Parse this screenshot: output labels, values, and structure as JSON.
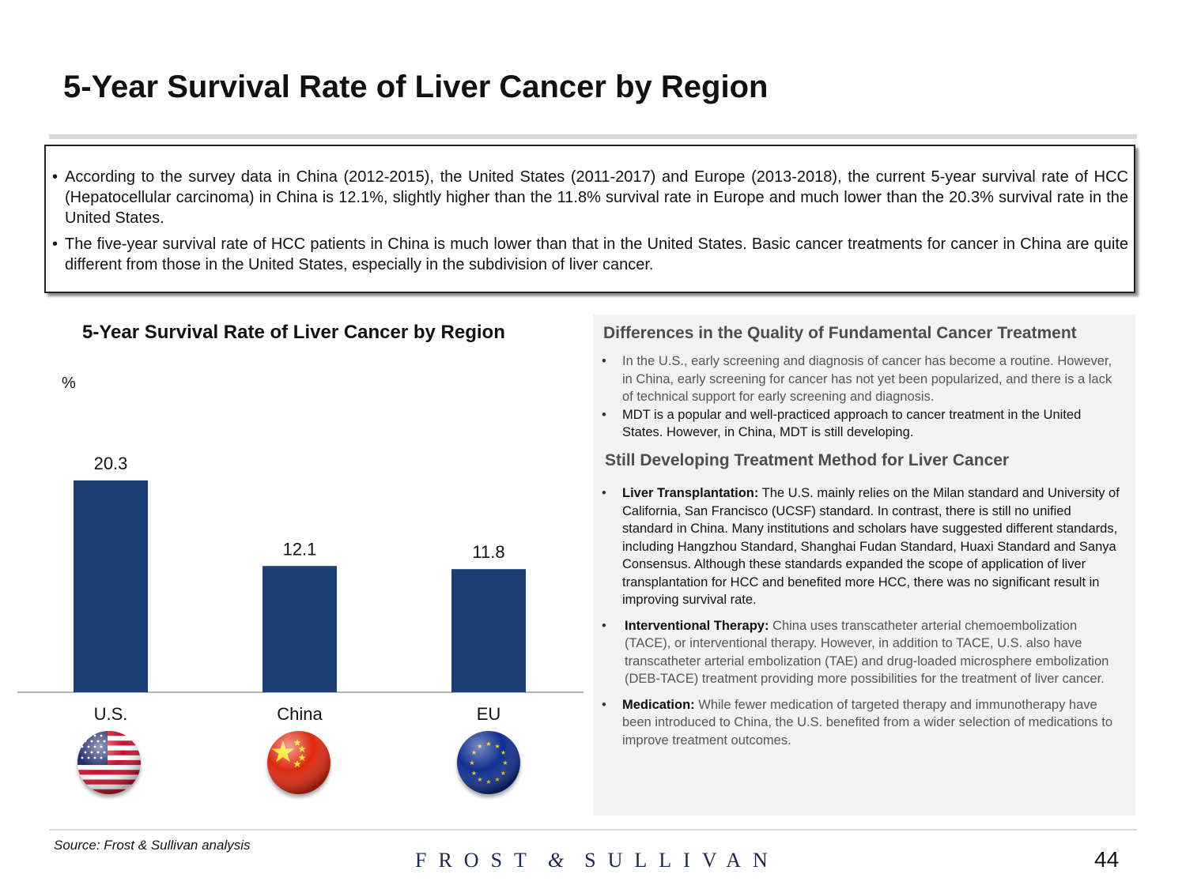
{
  "header": {
    "title": "5-Year Survival Rate of Liver Cancer by Region"
  },
  "summary": {
    "bullets": [
      "According to the survey data in China (2012-2015), the United States (2011-2017) and Europe (2013-2018), the current 5-year survival rate of HCC (Hepatocellular carcinoma) in China is 12.1%, slightly higher than the 11.8% survival rate in Europe and much lower than the 20.3% survival rate in the United States.",
      "The five-year survival rate of HCC patients in China is much lower than that in the United States. Basic cancer treatments for cancer in China are quite different from those in the United States, especially in the subdivision of liver cancer."
    ]
  },
  "chart_data": {
    "type": "bar",
    "title": "5-Year Survival Rate of Liver Cancer by Region",
    "ylabel": "%",
    "xlabel": "",
    "categories": [
      "U.S.",
      "China",
      "EU"
    ],
    "values": [
      20.3,
      12.1,
      11.8
    ],
    "value_labels": [
      "20.3",
      "12.1",
      "11.8"
    ],
    "ylim": [
      0,
      20.3
    ],
    "grid": false,
    "bar_color": "#1b3f73"
  },
  "flags": [
    "us-flag-icon",
    "china-flag-icon",
    "eu-flag-icon"
  ],
  "panel": {
    "section1": {
      "heading": "Differences in the Quality of Fundamental Cancer Treatment",
      "items": [
        "In the U.S., early screening and diagnosis of cancer has become a routine. However, in China, early screening for cancer has not yet been popularized, and there is a lack of technical support for early screening and diagnosis.",
        "MDT is a popular and well-practiced approach to cancer treatment in the United States. However, in China, MDT is still developing."
      ]
    },
    "section2": {
      "heading": "Still Developing Treatment Method for Liver Cancer",
      "items": [
        {
          "label": "Liver Transplantation:",
          "text": " The U.S. mainly relies on the Milan standard and University of California, San Francisco (UCSF) standard. In contrast, there is still no unified standard in China. Many institutions and scholars have suggested different standards, including Hangzhou Standard, Shanghai Fudan Standard, Huaxi Standard and Sanya Consensus. Although these standards expanded the scope of application of liver transplantation for HCC and benefited more HCC, there was no significant result in improving survival rate."
        },
        {
          "label": "Interventional Therapy:",
          "text": " China uses transcatheter arterial chemoembolization (TACE), or interventional therapy. However, in addition to TACE, U.S. also have transcatheter arterial embolization (TAE) and drug-loaded microsphere embolization (DEB-TACE) treatment providing more possibilities for the treatment of liver cancer."
        },
        {
          "label": "Medication:",
          "text": " While fewer medication of targeted therapy and immunotherapy have been introduced to China, the U.S. benefited from a wider selection of medications to improve treatment outcomes."
        }
      ]
    }
  },
  "footer": {
    "source": "Source: Frost & Sullivan analysis",
    "brand_left": "FROST",
    "brand_amp": "&",
    "brand_right": "SULLIVAN",
    "page_number": "44"
  }
}
